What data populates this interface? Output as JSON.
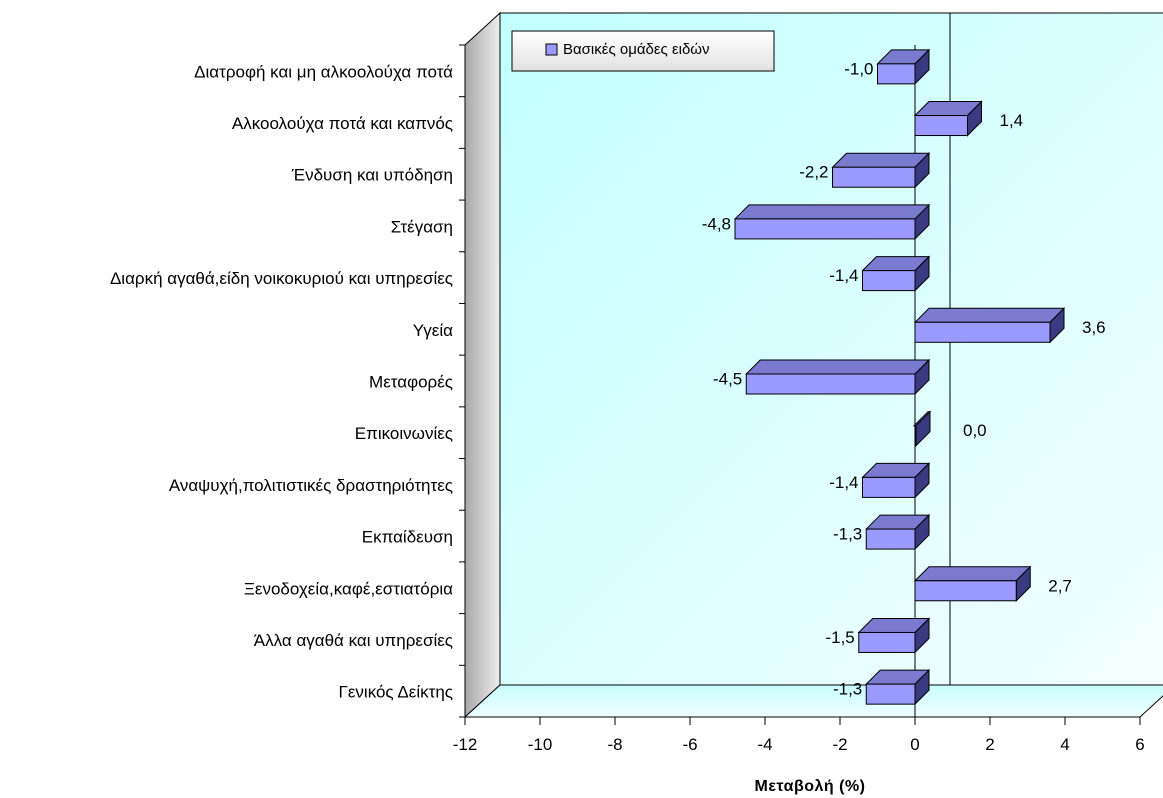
{
  "chart_data": {
    "type": "bar",
    "orientation": "horizontal",
    "categories": [
      "Διατροφή και μη αλκοολούχα ποτά",
      "Αλκοολούχα ποτά και καπνός",
      "Ένδυση και υπόδηση",
      "Στέγαση",
      "Διαρκή αγαθά,είδη νοικοκυριού και υπηρεσίες",
      "Υγεία",
      "Μεταφορές",
      "Επικοινωνίες",
      "Αναψυχή,πολιτιστικές δραστηριότητες",
      "Εκπαίδευση",
      "Ξενοδοχεία,καφέ,εστιατόρια",
      "Άλλα αγαθά και υπηρεσίες",
      "Γενικός Δείκτης"
    ],
    "series": [
      {
        "name": "Βασικές ομάδες ειδών",
        "values": [
          -1.0,
          1.4,
          -2.2,
          -4.8,
          -1.4,
          3.6,
          -4.5,
          0.0,
          -1.4,
          -1.3,
          2.7,
          -1.5,
          -1.3
        ],
        "value_labels": [
          "-1,0",
          "1,4",
          "-2,2",
          "-4,8",
          "-1,4",
          "3,6",
          "-4,5",
          "0,0",
          "-1,4",
          "-1,3",
          "2,7",
          "-1,5",
          "-1,3"
        ]
      }
    ],
    "xlabel": "Μεταβολή (%)",
    "ylabel": "",
    "xlim": [
      -12,
      6
    ],
    "xticks": [
      -12,
      -10,
      -8,
      -6,
      -4,
      -2,
      0,
      2,
      4,
      6
    ],
    "xtick_labels": [
      "-12",
      "-10",
      "-8",
      "-6",
      "-4",
      "-2",
      "0",
      "2",
      "4",
      "6"
    ],
    "legend_position": "top-left",
    "grid": false,
    "colors": {
      "bar_front": "#9a9aff",
      "bar_top": "#7a7ad0",
      "bar_side": "#3a3a80",
      "plot_back": "#ccffff",
      "floor": "#ccffff",
      "left_wall": "#b8b8b8"
    }
  }
}
